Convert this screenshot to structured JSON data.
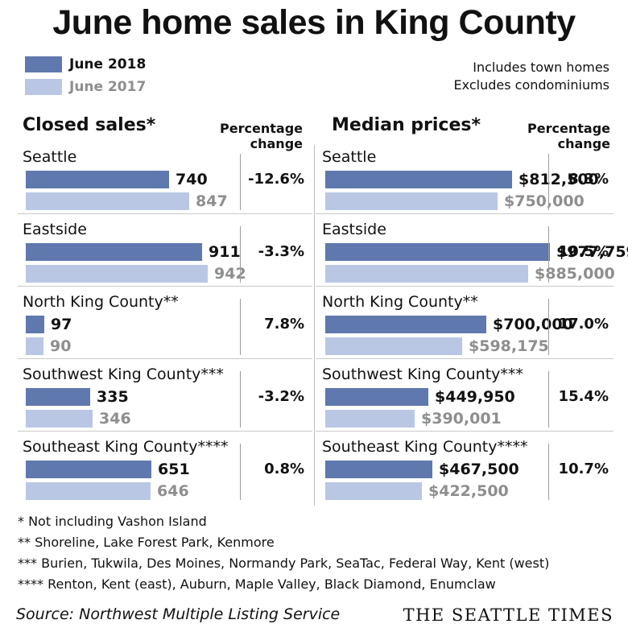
{
  "title": "June home sales in King County",
  "legend": [
    {
      "label": "June 2018",
      "color": "#5f78ad"
    },
    {
      "label": "June 2017",
      "color": "#b9c7e4"
    }
  ],
  "notes": [
    "Includes town homes",
    "Excludes condominiums"
  ],
  "chart_data": [
    {
      "type": "bar",
      "title": "Closed sales*",
      "pct_header": [
        "Percentage",
        "change"
      ],
      "categories": [
        "Seattle",
        "Eastside",
        "North King County**",
        "Southwest King County***",
        "Southeast King County****"
      ],
      "series": [
        {
          "name": "June 2018",
          "values": [
            740,
            911,
            97,
            335,
            651
          ],
          "labels": [
            "740",
            "911",
            "97",
            "335",
            "651"
          ]
        },
        {
          "name": "June 2017",
          "values": [
            847,
            942,
            90,
            346,
            646
          ],
          "labels": [
            "847",
            "942",
            "90",
            "346",
            "646"
          ]
        }
      ],
      "pct_change": [
        "-12.6%",
        "-3.3%",
        "7.8%",
        "-3.2%",
        "0.8%"
      ],
      "xlim": [
        0,
        1000
      ]
    },
    {
      "type": "bar",
      "title": "Median prices*",
      "pct_header": [
        "Percentage",
        "change"
      ],
      "categories": [
        "Seattle",
        "Eastside",
        "North King County**",
        "Southwest King County***",
        "Southeast King County****"
      ],
      "series": [
        {
          "name": "June 2018",
          "values": [
            812500,
            977759,
            700000,
            449950,
            467500
          ],
          "labels": [
            "$812,500",
            "$977,759",
            "$700,000",
            "$449,950",
            "$467,500"
          ]
        },
        {
          "name": "June 2017",
          "values": [
            750000,
            885000,
            598175,
            390001,
            422500
          ],
          "labels": [
            "$750,000",
            "$885,000",
            "$598,175",
            "$390,001",
            "$422,500"
          ]
        }
      ],
      "pct_change": [
        "8.3%",
        "10.5%",
        "17.0%",
        "15.4%",
        "10.7%"
      ],
      "xlim": [
        0,
        1000000
      ]
    }
  ],
  "footnotes": [
    "* Not including Vashon Island",
    "**  Shoreline, Lake Forest Park, Kenmore",
    "*** Burien, Tukwila, Des Moines, Normandy Park, SeaTac, Federal Way, Kent (west)",
    "**** Renton, Kent (east), Auburn, Maple Valley, Black Diamond, Enumclaw"
  ],
  "source": "Source: Northwest Multiple Listing Service",
  "brand": "THE SEATTLE TIMES"
}
